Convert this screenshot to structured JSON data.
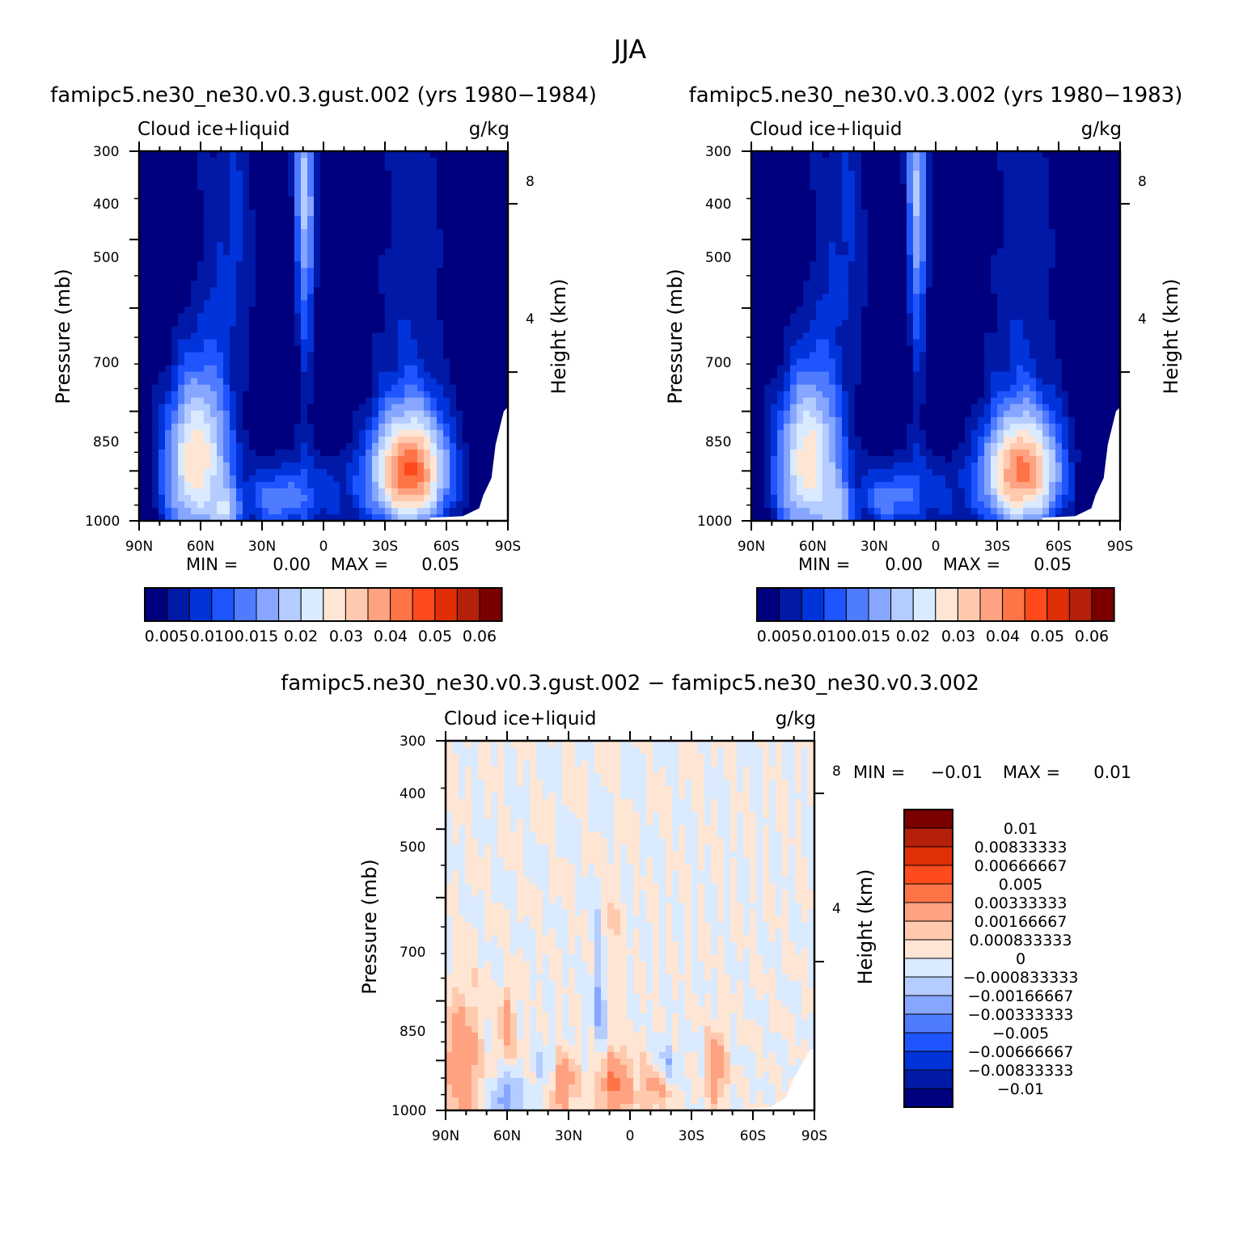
{
  "title": "JJA",
  "colors": {
    "seq": [
      "#00007f",
      "#0019a6",
      "#0033d9",
      "#1f55ff",
      "#4f7bff",
      "#86a6ff",
      "#b4ccff",
      "#daeaff",
      "#ffe6d4",
      "#ffc9ae",
      "#ffa281",
      "#ff7447",
      "#ff4a1c",
      "#e02e06",
      "#b5200a",
      "#7a0000"
    ],
    "div": [
      "#00007f",
      "#0019a6",
      "#0033d9",
      "#1f55ff",
      "#4f7bff",
      "#86a6ff",
      "#b4ccff",
      "#daeaff",
      "#ffe6d4",
      "#ffc9ae",
      "#ffa281",
      "#ff7447",
      "#ff4a1c",
      "#e02e06",
      "#b5200a",
      "#7a0000"
    ]
  },
  "chart_data": [
    {
      "type": "heatmap",
      "panel_title": "famipc5.ne30_ne30.v0.3.gust.002 (yrs 1980−1984)",
      "variable": "Cloud ice+liquid",
      "units": "g/kg",
      "xlabel": "",
      "ylabel": "Pressure (mb)",
      "ylabel_right": "Height (km)",
      "x_ticks": [
        "90N",
        "60N",
        "30N",
        "0",
        "30S",
        "60S",
        "90S"
      ],
      "y_ticks": [
        "300",
        "400",
        "500",
        "700",
        "850",
        "1000"
      ],
      "y_right_ticks": [
        "8",
        "4"
      ],
      "min_label": "MIN =",
      "min_value": "0.00",
      "max_label": "MAX =",
      "max_value": "0.05",
      "colorbar_labels": [
        "0.005",
        "0.010",
        "0.015",
        "0.02",
        "0.03",
        "0.04",
        "0.05",
        "0.06"
      ],
      "features": [
        {
          "lat": 60,
          "p": 800,
          "sx": 11,
          "sp": 150,
          "amp": 0.031
        },
        {
          "lat": -42,
          "p": 855,
          "sx": 13,
          "sp": 110,
          "amp": 0.052
        },
        {
          "lat": 68,
          "p": 900,
          "sx": 10,
          "sp": 160,
          "amp": 0.012
        },
        {
          "lat": 10,
          "p": 920,
          "sx": 20,
          "sp": 90,
          "amp": 0.012
        },
        {
          "lat": 24,
          "p": 940,
          "sx": 8,
          "sp": 60,
          "amp": 0.01
        },
        {
          "lat": 48,
          "p": 980,
          "sx": 5,
          "sp": 60,
          "amp": 0.02
        },
        {
          "lat": 9,
          "p": 330,
          "sx": 4,
          "sp": 120,
          "amp": 0.022
        },
        {
          "lat": 45,
          "p": 400,
          "sx": 12,
          "sp": 160,
          "amp": 0.009
        },
        {
          "lat": -42,
          "p": 500,
          "sx": 14,
          "sp": 300,
          "amp": 0.008
        },
        {
          "lat": 9,
          "p": 600,
          "sx": 3,
          "sp": 200,
          "amp": 0.008
        }
      ]
    },
    {
      "type": "heatmap",
      "panel_title": "famipc5.ne30_ne30.v0.3.002 (yrs 1980−1983)",
      "variable": "Cloud ice+liquid",
      "units": "g/kg",
      "xlabel": "",
      "ylabel": "Pressure (mb)",
      "ylabel_right": "Height (km)",
      "x_ticks": [
        "90N",
        "60N",
        "30N",
        "0",
        "30S",
        "60S",
        "90S"
      ],
      "y_ticks": [
        "300",
        "400",
        "500",
        "700",
        "850",
        "1000"
      ],
      "y_right_ticks": [
        "8",
        "4"
      ],
      "min_label": "MIN =",
      "min_value": "0.00",
      "max_label": "MAX =",
      "max_value": "0.05",
      "colorbar_labels": [
        "0.005",
        "0.010",
        "0.015",
        "0.02",
        "0.03",
        "0.04",
        "0.05",
        "0.06"
      ],
      "features": [
        {
          "lat": 60,
          "p": 800,
          "sx": 11,
          "sp": 150,
          "amp": 0.03
        },
        {
          "lat": -42,
          "p": 855,
          "sx": 13,
          "sp": 110,
          "amp": 0.048
        },
        {
          "lat": 68,
          "p": 900,
          "sx": 10,
          "sp": 160,
          "amp": 0.012
        },
        {
          "lat": 10,
          "p": 920,
          "sx": 20,
          "sp": 90,
          "amp": 0.011
        },
        {
          "lat": 24,
          "p": 940,
          "sx": 8,
          "sp": 60,
          "amp": 0.01
        },
        {
          "lat": 48,
          "p": 980,
          "sx": 5,
          "sp": 60,
          "amp": 0.019
        },
        {
          "lat": 9,
          "p": 330,
          "sx": 4,
          "sp": 120,
          "amp": 0.021
        },
        {
          "lat": 45,
          "p": 400,
          "sx": 12,
          "sp": 160,
          "amp": 0.009
        },
        {
          "lat": -42,
          "p": 500,
          "sx": 14,
          "sp": 300,
          "amp": 0.008
        },
        {
          "lat": 9,
          "p": 600,
          "sx": 3,
          "sp": 200,
          "amp": 0.008
        }
      ]
    },
    {
      "type": "heatmap",
      "panel_title": "famipc5.ne30_ne30.v0.3.gust.002 − famipc5.ne30_ne30.v0.3.002",
      "variable": "Cloud ice+liquid",
      "units": "g/kg",
      "xlabel": "",
      "ylabel": "Pressure (mb)",
      "ylabel_right": "Height (km)",
      "x_ticks": [
        "90N",
        "60N",
        "30N",
        "0",
        "30S",
        "60S",
        "90S"
      ],
      "y_ticks": [
        "300",
        "400",
        "500",
        "700",
        "850",
        "1000"
      ],
      "y_right_ticks": [
        "8",
        "4"
      ],
      "min_label": "MIN =",
      "min_value": "−0.01",
      "max_label": "MAX =",
      "max_value": "0.01",
      "colorbar_labels": [
        "0.01",
        "0.00833333",
        "0.00666667",
        "0.005",
        "0.00333333",
        "0.00166667",
        "0.000833333",
        "0",
        "−0.000833333",
        "−0.00166667",
        "−0.00333333",
        "−0.005",
        "−0.00666667",
        "−0.00833333",
        "−0.01"
      ],
      "features": [
        {
          "lat": 82,
          "p": 860,
          "sx": 6,
          "sp": 120,
          "amp": 0.003
        },
        {
          "lat": 60,
          "p": 760,
          "sx": 3,
          "sp": 60,
          "amp": 0.0025
        },
        {
          "lat": 34,
          "p": 920,
          "sx": 5,
          "sp": 60,
          "amp": 0.0035
        },
        {
          "lat": 8,
          "p": 920,
          "sx": 6,
          "sp": 70,
          "amp": 0.0035
        },
        {
          "lat": -12,
          "p": 930,
          "sx": 6,
          "sp": 50,
          "amp": 0.002
        },
        {
          "lat": -42,
          "p": 880,
          "sx": 3,
          "sp": 70,
          "amp": 0.003
        },
        {
          "lat": 10,
          "p": 600,
          "sx": 3,
          "sp": 100,
          "amp": 0.0015
        },
        {
          "lat": 14,
          "p": 700,
          "sx": 3,
          "sp": 120,
          "amp": -0.002
        },
        {
          "lat": 40,
          "p": 900,
          "sx": 4,
          "sp": 60,
          "amp": -0.002
        },
        {
          "lat": 60,
          "p": 960,
          "sx": 5,
          "sp": 50,
          "amp": -0.0025
        },
        {
          "lat": -18,
          "p": 860,
          "sx": 4,
          "sp": 40,
          "amp": -0.0015
        }
      ]
    }
  ]
}
